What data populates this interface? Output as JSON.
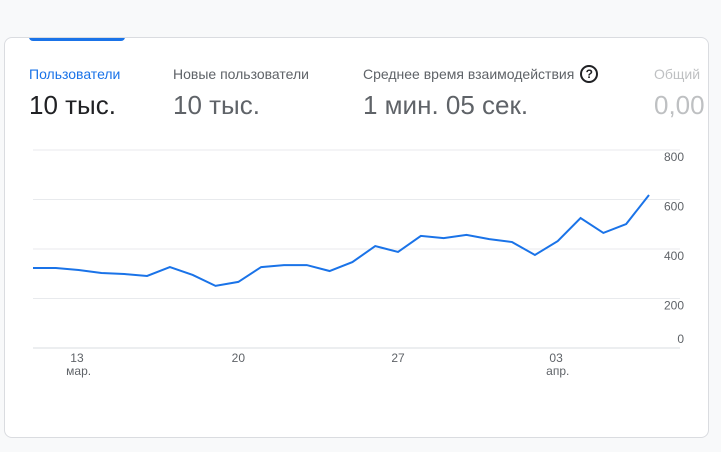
{
  "tabs": [
    {
      "label": "Пользователи",
      "value": "10 тыс."
    },
    {
      "label": "Новые пользователи",
      "value": "10 тыс."
    },
    {
      "label": "Среднее время взаимодействия",
      "value": "1 мин. 05 сек."
    },
    {
      "label": "Общий",
      "value": "0,00"
    }
  ],
  "chart_data": {
    "type": "line",
    "categories": [
      null,
      null,
      "13 мар.",
      null,
      null,
      null,
      null,
      null,
      null,
      "20",
      null,
      null,
      null,
      null,
      null,
      null,
      "27",
      null,
      null,
      null,
      null,
      null,
      null,
      "03 апр.",
      null,
      null,
      null,
      null
    ],
    "series": [
      {
        "name": "Пользователи",
        "color": "#1a73e8",
        "values": [
          323,
          323,
          315,
          303,
          299,
          291,
          327,
          295,
          251,
          267,
          327,
          335,
          335,
          311,
          347,
          412,
          388,
          453,
          444,
          457,
          440,
          428,
          376,
          432,
          525,
          465,
          501,
          618
        ]
      }
    ],
    "ylim": [
      0,
      800
    ],
    "yticks": [
      0,
      200,
      400,
      600,
      800
    ],
    "grid": true
  }
}
